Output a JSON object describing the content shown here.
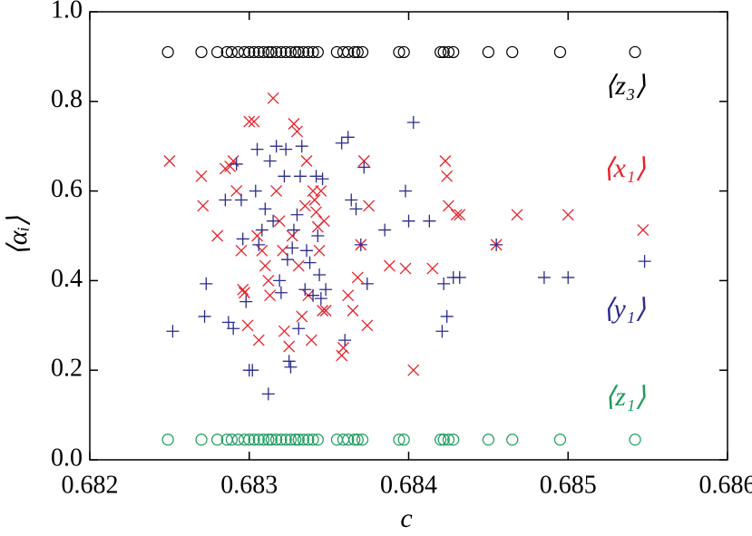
{
  "chart_data": {
    "type": "scatter",
    "x_label": "c",
    "y_label": "⟨αᵢ⟩",
    "xlim": [
      0.682,
      0.686
    ],
    "xticks": [
      0.682,
      0.683,
      0.684,
      0.685,
      0.686
    ],
    "ylim": [
      0,
      1
    ],
    "yticks": [
      {
        "value": 0,
        "label": "0.0"
      },
      0.2,
      0.4,
      0.6,
      0.8,
      {
        "value": 1,
        "label": "1.0"
      }
    ],
    "series": [
      {
        "name": "⟨z₃⟩",
        "color": "#000000",
        "marker": "circle",
        "x": [
          0.68249,
          0.6827,
          0.6828,
          0.68286,
          0.68289,
          0.68293,
          0.68297,
          0.683,
          0.68303,
          0.68306,
          0.68309,
          0.68312,
          0.68314,
          0.68317,
          0.6832,
          0.68323,
          0.68326,
          0.68329,
          0.68331,
          0.68334,
          0.68337,
          0.6834,
          0.68343,
          0.68355,
          0.68359,
          0.68362,
          0.68366,
          0.68368,
          0.68371,
          0.68394,
          0.68397,
          0.6842,
          0.68422,
          0.68425,
          0.68428,
          0.6845,
          0.68465,
          0.68495,
          0.68542
        ],
        "values": [
          0.91,
          0.91,
          0.91,
          0.91,
          0.91,
          0.91,
          0.91,
          0.91,
          0.91,
          0.91,
          0.91,
          0.91,
          0.91,
          0.91,
          0.91,
          0.91,
          0.91,
          0.91,
          0.91,
          0.91,
          0.91,
          0.91,
          0.91,
          0.91,
          0.91,
          0.91,
          0.91,
          0.91,
          0.91,
          0.91,
          0.91,
          0.91,
          0.91,
          0.91,
          0.91,
          0.91,
          0.91,
          0.91,
          0.91
        ]
      },
      {
        "name": "⟨x₁⟩",
        "color": "#e8202a",
        "marker": "cross",
        "x": [
          0.6825,
          0.6827,
          0.68271,
          0.6828,
          0.68285,
          0.68288,
          0.6829,
          0.68292,
          0.68295,
          0.68296,
          0.68297,
          0.68299,
          0.683,
          0.68303,
          0.68305,
          0.68306,
          0.68308,
          0.6831,
          0.68312,
          0.68313,
          0.68315,
          0.68317,
          0.68319,
          0.68321,
          0.68322,
          0.68325,
          0.68327,
          0.68328,
          0.6833,
          0.68331,
          0.68333,
          0.68335,
          0.68336,
          0.68337,
          0.68339,
          0.6834,
          0.68341,
          0.68342,
          0.68343,
          0.68344,
          0.68345,
          0.68346,
          0.68347,
          0.68348,
          0.68358,
          0.68359,
          0.68362,
          0.68365,
          0.68368,
          0.6837,
          0.68372,
          0.68374,
          0.68375,
          0.68388,
          0.68398,
          0.68403,
          0.68415,
          0.68423,
          0.68424,
          0.68425,
          0.6843,
          0.68432,
          0.68455,
          0.68468,
          0.685,
          0.68547
        ],
        "values": [
          0.667,
          0.633,
          0.567,
          0.5,
          0.65,
          0.655,
          0.667,
          0.6,
          0.467,
          0.38,
          0.373,
          0.3,
          0.755,
          0.755,
          0.5,
          0.267,
          0.467,
          0.433,
          0.4,
          0.367,
          0.807,
          0.6,
          0.533,
          0.467,
          0.287,
          0.253,
          0.5,
          0.75,
          0.733,
          0.433,
          0.32,
          0.567,
          0.667,
          0.367,
          0.267,
          0.6,
          0.58,
          0.553,
          0.52,
          0.467,
          0.6,
          0.333,
          0.533,
          0.333,
          0.233,
          0.25,
          0.367,
          0.333,
          0.407,
          0.48,
          0.667,
          0.3,
          0.567,
          0.433,
          0.427,
          0.2,
          0.427,
          0.667,
          0.633,
          0.567,
          0.547,
          0.547,
          0.48,
          0.547,
          0.547,
          0.513
        ]
      },
      {
        "name": "⟨y₁⟩",
        "color": "#2b2b8c",
        "marker": "plus",
        "x": [
          0.68252,
          0.68272,
          0.68273,
          0.68285,
          0.68287,
          0.6829,
          0.68292,
          0.68295,
          0.68296,
          0.68298,
          0.683,
          0.68302,
          0.68304,
          0.68305,
          0.68306,
          0.68308,
          0.6831,
          0.68312,
          0.68313,
          0.68315,
          0.68317,
          0.68319,
          0.6832,
          0.68322,
          0.68323,
          0.68324,
          0.68325,
          0.68326,
          0.68327,
          0.68328,
          0.6833,
          0.68331,
          0.68332,
          0.68333,
          0.68335,
          0.68336,
          0.68338,
          0.6834,
          0.68342,
          0.68343,
          0.68344,
          0.68345,
          0.68346,
          0.68348,
          0.68358,
          0.6836,
          0.68362,
          0.68364,
          0.68367,
          0.6837,
          0.68372,
          0.68374,
          0.68385,
          0.68398,
          0.684,
          0.68403,
          0.68413,
          0.68421,
          0.68422,
          0.68424,
          0.68428,
          0.68432,
          0.68455,
          0.68485,
          0.685,
          0.68548
        ],
        "values": [
          0.287,
          0.32,
          0.393,
          0.58,
          0.307,
          0.293,
          0.66,
          0.58,
          0.493,
          0.353,
          0.2,
          0.2,
          0.6,
          0.693,
          0.48,
          0.513,
          0.56,
          0.147,
          0.667,
          0.533,
          0.7,
          0.4,
          0.373,
          0.633,
          0.693,
          0.447,
          0.22,
          0.207,
          0.473,
          0.513,
          0.547,
          0.293,
          0.633,
          0.7,
          0.38,
          0.467,
          0.44,
          0.367,
          0.633,
          0.5,
          0.413,
          0.36,
          0.627,
          0.38,
          0.707,
          0.267,
          0.72,
          0.58,
          0.56,
          0.48,
          0.653,
          0.393,
          0.513,
          0.6,
          0.533,
          0.753,
          0.533,
          0.287,
          0.393,
          0.32,
          0.407,
          0.407,
          0.48,
          0.407,
          0.407,
          0.443
        ]
      },
      {
        "name": "⟨z₁⟩",
        "color": "#1a9a5a",
        "marker": "circle",
        "x": [
          0.68249,
          0.6827,
          0.6828,
          0.68286,
          0.68289,
          0.68293,
          0.68297,
          0.683,
          0.68303,
          0.68306,
          0.68309,
          0.68312,
          0.68314,
          0.68317,
          0.6832,
          0.68323,
          0.68326,
          0.68329,
          0.68331,
          0.68334,
          0.68337,
          0.6834,
          0.68343,
          0.68355,
          0.68359,
          0.68362,
          0.68366,
          0.68368,
          0.68371,
          0.68394,
          0.68397,
          0.6842,
          0.68422,
          0.68425,
          0.68428,
          0.6845,
          0.68465,
          0.68495,
          0.68542
        ],
        "values": [
          0.045,
          0.045,
          0.045,
          0.045,
          0.045,
          0.045,
          0.045,
          0.045,
          0.045,
          0.045,
          0.045,
          0.045,
          0.045,
          0.045,
          0.045,
          0.045,
          0.045,
          0.045,
          0.045,
          0.045,
          0.045,
          0.045,
          0.045,
          0.045,
          0.045,
          0.045,
          0.045,
          0.045,
          0.045,
          0.045,
          0.045,
          0.045,
          0.045,
          0.045,
          0.045,
          0.045,
          0.045,
          0.045,
          0.045
        ]
      }
    ]
  }
}
